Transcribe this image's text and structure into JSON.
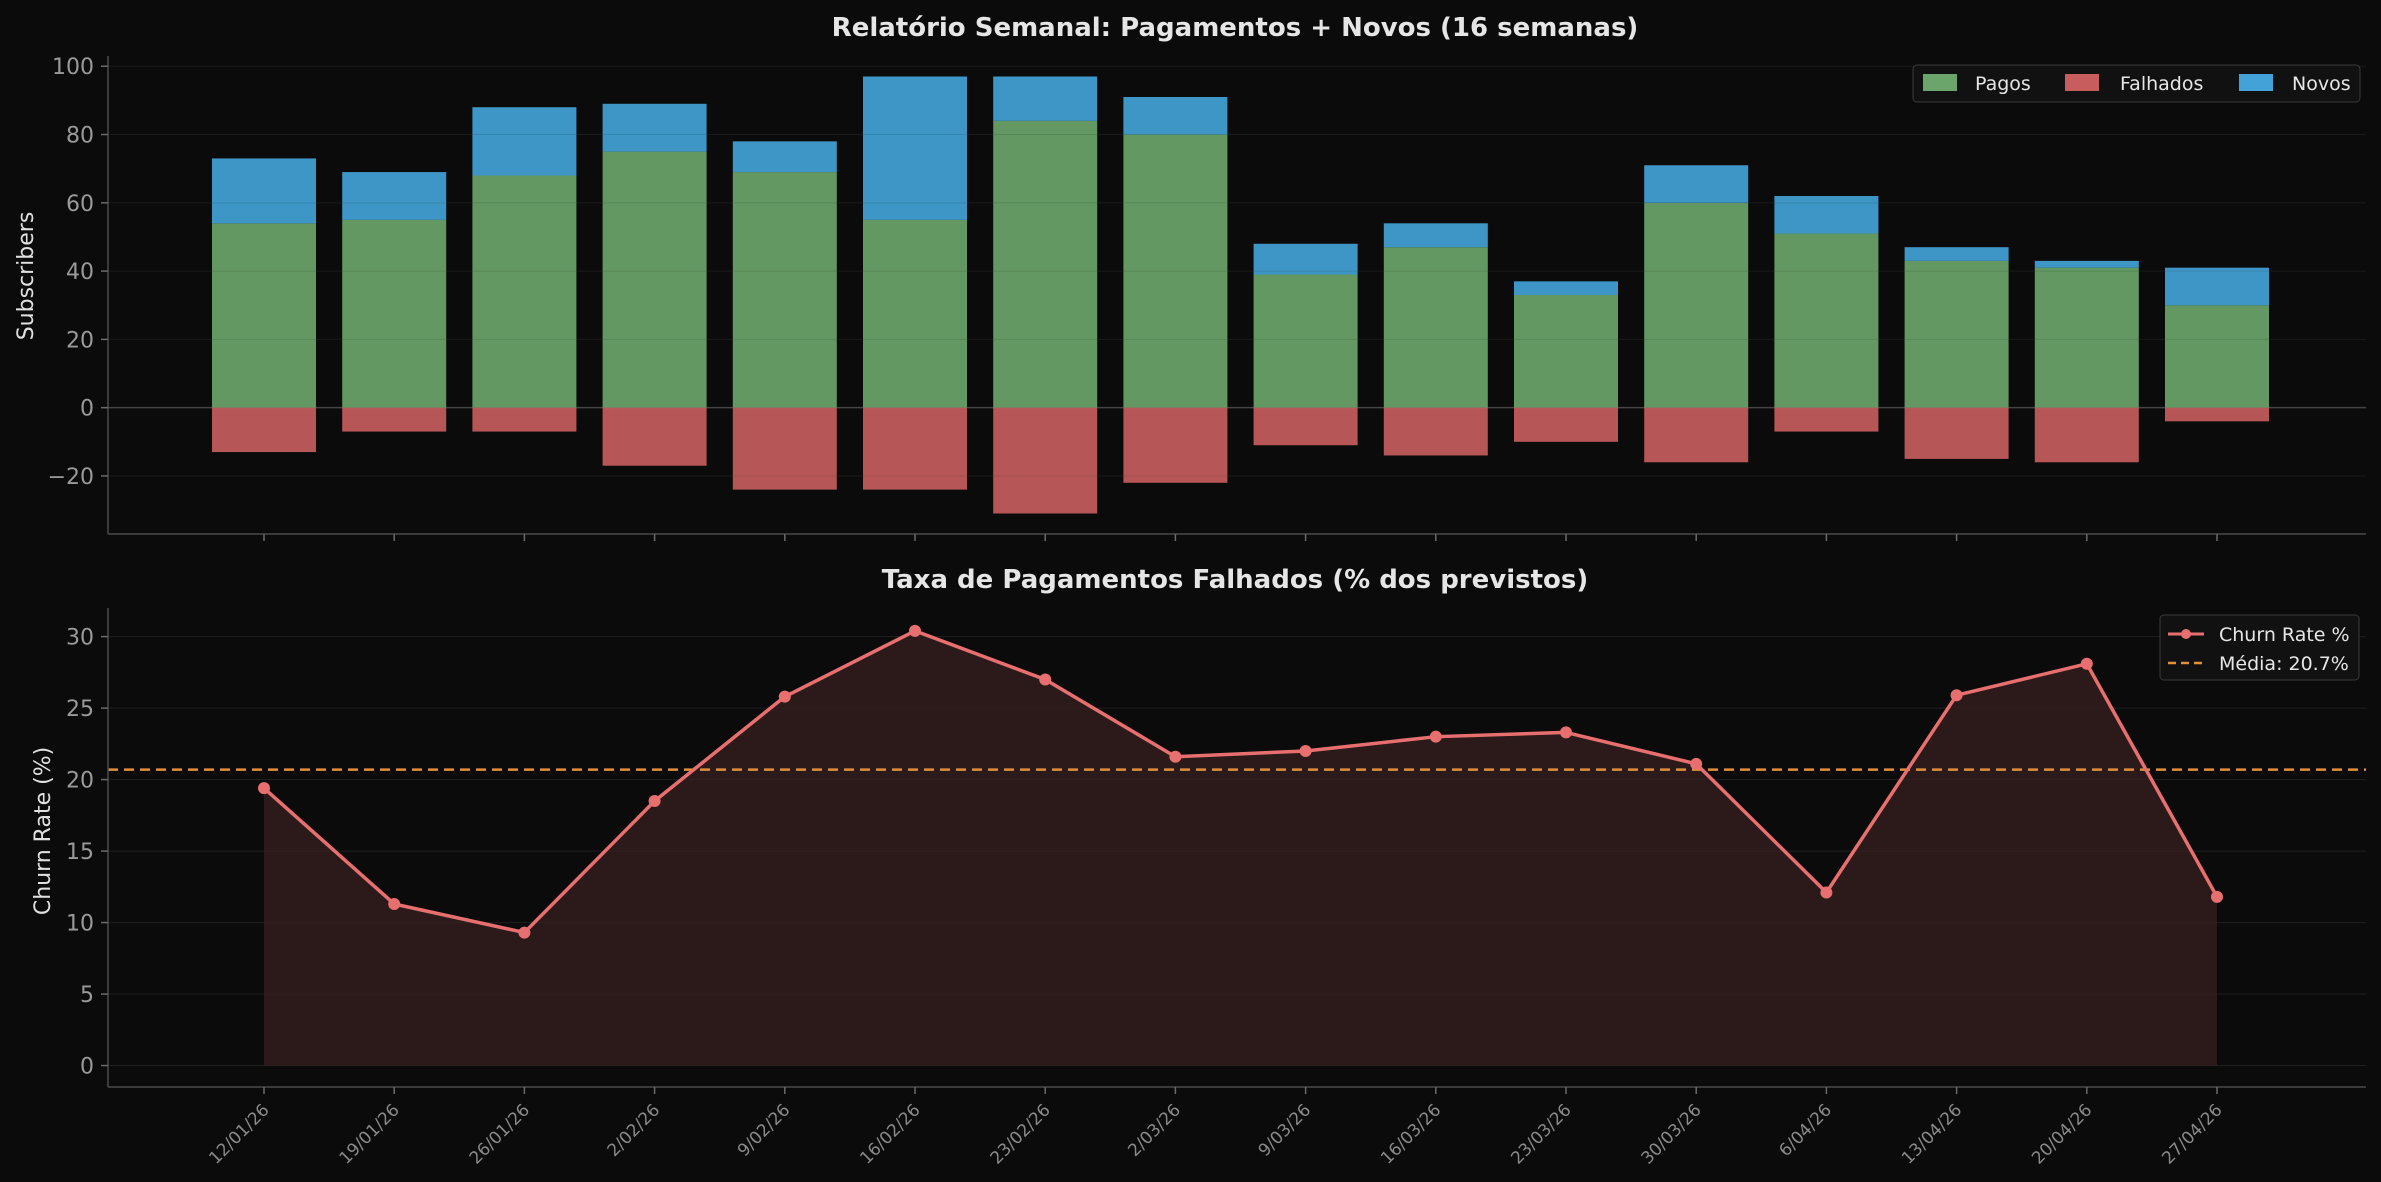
{
  "chart_data": [
    {
      "type": "bar",
      "title": "Relatório Semanal: Pagamentos + Novos (16 semanas)",
      "xlabel": "",
      "ylabel": "Subscribers",
      "ylim": [
        -37,
        103
      ],
      "yticks": [
        100,
        80,
        60,
        40,
        20,
        0,
        -20
      ],
      "ytick_labels": [
        "100",
        "80",
        "60",
        "40",
        "20",
        "0",
        "−20"
      ],
      "categories": [
        "12/01/26",
        "19/01/26",
        "26/01/26",
        "2/02/26",
        "9/02/26",
        "16/02/26",
        "23/02/26",
        "2/03/26",
        "9/03/26",
        "16/03/26",
        "23/03/26",
        "30/03/26",
        "6/04/26",
        "13/04/26",
        "20/04/26",
        "27/04/26"
      ],
      "stacked": true,
      "series": [
        {
          "name": "Pagos",
          "color": "#6ba56b",
          "values": [
            54,
            55,
            68,
            75,
            69,
            55,
            84,
            80,
            39,
            47,
            33,
            60,
            51,
            43,
            41,
            30
          ]
        },
        {
          "name": "Falhados",
          "color": "#c75d5d",
          "values": [
            -13,
            -7,
            -7,
            -17,
            -24,
            -24,
            -31,
            -22,
            -11,
            -14,
            -10,
            -16,
            -7,
            -15,
            -16,
            -4
          ]
        },
        {
          "name": "Novos",
          "color": "#43a3d8",
          "values": [
            19,
            14,
            20,
            14,
            9,
            42,
            13,
            11,
            9,
            7,
            4,
            11,
            11,
            4,
            2,
            11
          ]
        }
      ],
      "legend": {
        "position": "top-right",
        "labels": [
          "Pagos",
          "Falhados",
          "Novos"
        ]
      },
      "grid": true
    },
    {
      "type": "line",
      "title": "Taxa de Pagamentos Falhados (% dos previstos)",
      "xlabel": "",
      "ylabel": "Churn Rate (%)",
      "ylim": [
        -1.5,
        32
      ],
      "yticks": [
        0,
        5,
        10,
        15,
        20,
        25,
        30
      ],
      "ytick_labels": [
        "0",
        "5",
        "10",
        "15",
        "20",
        "25",
        "30"
      ],
      "x": [
        "12/01/26",
        "19/01/26",
        "26/01/26",
        "2/02/26",
        "9/02/26",
        "16/02/26",
        "23/02/26",
        "2/03/26",
        "9/03/26",
        "16/03/26",
        "23/03/26",
        "30/03/26",
        "6/04/26",
        "13/04/26",
        "20/04/26",
        "27/04/26"
      ],
      "series": [
        {
          "name": "Churn Rate %",
          "color": "#e86f6f",
          "values": [
            19.4,
            11.3,
            9.3,
            18.5,
            25.8,
            30.4,
            27.0,
            21.6,
            22.0,
            23.0,
            23.3,
            21.1,
            12.1,
            25.9,
            28.1,
            11.8
          ]
        }
      ],
      "reference_line": {
        "label": "Média: 20.7%",
        "value": 20.7,
        "color": "#e0913a"
      },
      "legend": {
        "position": "top-right",
        "labels": [
          "Churn Rate %",
          "Média: 20.7%"
        ]
      },
      "grid": true
    }
  ]
}
